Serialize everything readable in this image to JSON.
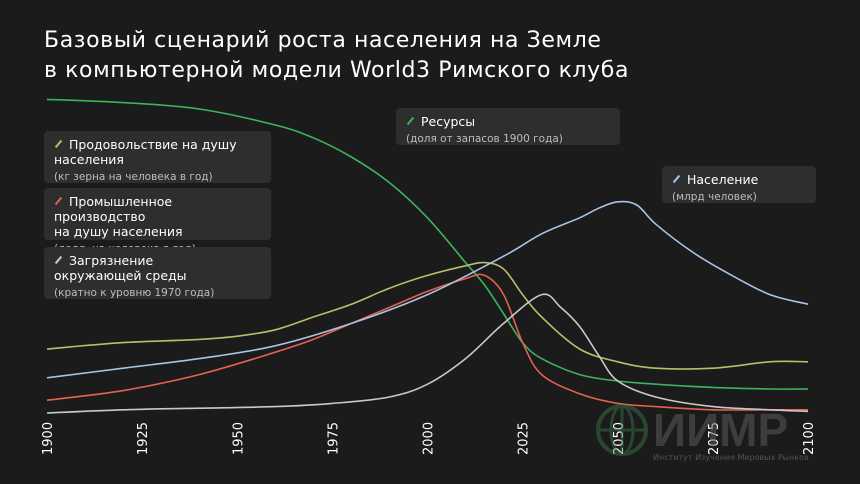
{
  "title": {
    "line1": "Базовый сценарий роста населения на Земле",
    "line2": "в компьютерной модели World3 Римского клуба"
  },
  "legend": {
    "food": {
      "name_l1": "Продовольствие на душу",
      "name_l2": "населения",
      "unit": "(кг зерна на человека в год)",
      "color": "#b5c06a"
    },
    "industry": {
      "name_l1": "Промышленное производство",
      "name_l2": "на душу населения",
      "unit": "(долл. на человека в год)",
      "color": "#e3624f"
    },
    "pollution": {
      "name_l1": "Загрязнение",
      "name_l2": "окружающей среды",
      "unit": "(кратно к уровню 1970 года)",
      "color": "#c9c9c9"
    },
    "resources": {
      "name_l1": "Ресурсы",
      "name_l2": "",
      "unit": "(доля от запасов 1900 года)",
      "color": "#3cb45c"
    },
    "population": {
      "name_l1": "Население",
      "name_l2": "",
      "unit": "(млрд человек)",
      "color": "#a9c4e6"
    }
  },
  "logo": {
    "wordmark": "ИИМР",
    "subtitle": "Институт Изучения Мировых Рынков"
  },
  "chart_data": {
    "type": "line",
    "xlabel": "",
    "ylabel": "",
    "x_ticks": [
      "1900",
      "1925",
      "1950",
      "1975",
      "2000",
      "2025",
      "2050",
      "2075",
      "2100"
    ],
    "xlim": [
      1900,
      2100
    ],
    "ylim": [
      0,
      1
    ],
    "grid": false,
    "series": [
      {
        "key": "resources",
        "name": "Ресурсы",
        "x": [
          1900,
          1920,
          1940,
          1960,
          1970,
          1980,
          1990,
          2000,
          2010,
          2015,
          2020,
          2025,
          2030,
          2040,
          2050,
          2060,
          2075,
          2090,
          2100
        ],
        "y": [
          0.98,
          0.97,
          0.95,
          0.9,
          0.86,
          0.8,
          0.72,
          0.61,
          0.47,
          0.4,
          0.31,
          0.22,
          0.17,
          0.12,
          0.1,
          0.09,
          0.08,
          0.075,
          0.075
        ]
      },
      {
        "key": "food",
        "name": "Продовольствие на душу населения",
        "x": [
          1900,
          1920,
          1940,
          1950,
          1960,
          1970,
          1980,
          1990,
          2000,
          2010,
          2015,
          2020,
          2025,
          2030,
          2040,
          2050,
          2060,
          2075,
          2090,
          2100
        ],
        "y": [
          0.2,
          0.22,
          0.23,
          0.24,
          0.26,
          0.3,
          0.34,
          0.39,
          0.43,
          0.46,
          0.47,
          0.45,
          0.37,
          0.3,
          0.2,
          0.16,
          0.14,
          0.14,
          0.16,
          0.16
        ]
      },
      {
        "key": "industry",
        "name": "Промышленное производство на душу населения",
        "x": [
          1900,
          1920,
          1940,
          1960,
          1970,
          1980,
          1990,
          2000,
          2010,
          2015,
          2020,
          2025,
          2030,
          2040,
          2050,
          2060,
          2075,
          2090,
          2100
        ],
        "y": [
          0.04,
          0.07,
          0.12,
          0.19,
          0.23,
          0.28,
          0.33,
          0.38,
          0.42,
          0.43,
          0.37,
          0.22,
          0.12,
          0.06,
          0.03,
          0.02,
          0.01,
          0.01,
          0.01
        ]
      },
      {
        "key": "pollution",
        "name": "Загрязнение окружающей среды",
        "x": [
          1900,
          1920,
          1940,
          1960,
          1975,
          1990,
          2000,
          2010,
          2020,
          2030,
          2035,
          2040,
          2045,
          2050,
          2060,
          2075,
          2090,
          2100
        ],
        "y": [
          0.0,
          0.01,
          0.015,
          0.02,
          0.03,
          0.05,
          0.09,
          0.17,
          0.28,
          0.37,
          0.33,
          0.27,
          0.18,
          0.1,
          0.05,
          0.02,
          0.01,
          0.005
        ]
      },
      {
        "key": "population",
        "name": "Население",
        "x": [
          1900,
          1920,
          1940,
          1960,
          1980,
          2000,
          2020,
          2030,
          2040,
          2045,
          2050,
          2055,
          2060,
          2070,
          2080,
          2090,
          2100
        ],
        "y": [
          0.11,
          0.14,
          0.17,
          0.21,
          0.28,
          0.37,
          0.49,
          0.56,
          0.61,
          0.64,
          0.66,
          0.65,
          0.59,
          0.5,
          0.43,
          0.37,
          0.34
        ]
      }
    ]
  }
}
